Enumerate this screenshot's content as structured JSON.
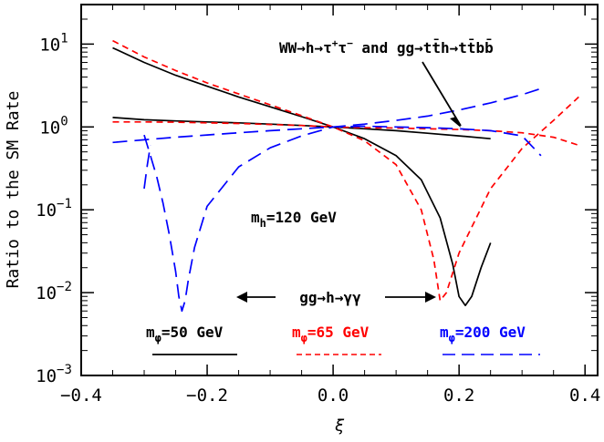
{
  "chart_data": {
    "type": "line",
    "xlabel": "ξ",
    "ylabel": "Ratio to the SM Rate",
    "xlim": [
      -0.4,
      0.42
    ],
    "ylim": [
      0.001,
      30
    ],
    "yscale": "log",
    "x_tick_labels": [
      "−0.4",
      "−0.2",
      "0.0",
      "0.2",
      "0.4"
    ],
    "x_ticks": [
      -0.4,
      -0.2,
      0.0,
      0.2,
      0.4
    ],
    "y_ticks": [
      0.001,
      0.01,
      0.1,
      1,
      10
    ],
    "y_tick_labels": [
      {
        "base": "10",
        "exp": "−3"
      },
      {
        "base": "10",
        "exp": "−2"
      },
      {
        "base": "10",
        "exp": "−1"
      },
      {
        "base": "10",
        "exp": "0"
      },
      {
        "base": "10",
        "exp": "1"
      }
    ],
    "annotations": {
      "ww_line1": "WW→h→τ",
      "ww_sup_plus": "+",
      "ww_tau2": "τ",
      "ww_sup_minus": "−",
      "ww_line2": " and gg→tt̄h→tt̄bb̄",
      "mh_base": "m",
      "mh_sub": "h",
      "mh_value": "=120 GeV",
      "gg_gamma": "gg→h→γγ"
    },
    "legend": [
      {
        "base": "m",
        "sub": "φ",
        "value": "=50 GeV",
        "color": "#000000",
        "dash": "solid"
      },
      {
        "base": "m",
        "sub": "φ",
        "value": "=65 GeV",
        "color": "#ff0000",
        "dash": "dashed"
      },
      {
        "base": "m",
        "sub": "φ",
        "value": "=200 GeV",
        "color": "#0000ff",
        "dash": "long-dashed"
      }
    ],
    "series": [
      {
        "group": "m_phi=50 GeV",
        "process": "WW→h→ττ and gg→tth→ttbb",
        "color": "#000000",
        "dash": "solid",
        "x": [
          -0.35,
          -0.3,
          -0.25,
          -0.2,
          -0.15,
          -0.1,
          -0.05,
          0.0,
          0.05,
          0.1,
          0.15,
          0.2,
          0.25
        ],
        "y": [
          1.3,
          1.22,
          1.18,
          1.15,
          1.12,
          1.08,
          1.04,
          1.0,
          0.95,
          0.9,
          0.84,
          0.78,
          0.72
        ]
      },
      {
        "group": "m_phi=50 GeV",
        "process": "gg→h→γγ",
        "color": "#000000",
        "dash": "solid",
        "x": [
          -0.35,
          -0.3,
          -0.25,
          -0.2,
          -0.15,
          -0.1,
          -0.05,
          0.0,
          0.05,
          0.1,
          0.14,
          0.17,
          0.19,
          0.2,
          0.21,
          0.22,
          0.235,
          0.25
        ],
        "y": [
          9.0,
          6.0,
          4.2,
          3.1,
          2.3,
          1.75,
          1.33,
          1.0,
          0.72,
          0.45,
          0.23,
          0.08,
          0.022,
          0.009,
          0.007,
          0.009,
          0.02,
          0.04
        ]
      },
      {
        "group": "m_phi=65 GeV",
        "process": "WW→h→ττ and gg→tth→ttbb",
        "color": "#ff0000",
        "dash": "dashed",
        "x": [
          -0.35,
          -0.3,
          -0.25,
          -0.2,
          -0.15,
          -0.1,
          -0.05,
          0.0,
          0.05,
          0.1,
          0.15,
          0.2,
          0.25,
          0.3,
          0.35,
          0.39
        ],
        "y": [
          1.15,
          1.15,
          1.14,
          1.12,
          1.1,
          1.07,
          1.04,
          1.0,
          0.98,
          0.97,
          0.95,
          0.93,
          0.9,
          0.85,
          0.75,
          0.6
        ]
      },
      {
        "group": "m_phi=65 GeV",
        "process": "gg→h→γγ",
        "color": "#ff0000",
        "dash": "dashed",
        "x": [
          -0.35,
          -0.3,
          -0.25,
          -0.2,
          -0.15,
          -0.1,
          -0.05,
          0.0,
          0.05,
          0.1,
          0.14,
          0.16,
          0.17,
          0.18,
          0.2,
          0.25,
          0.3,
          0.35,
          0.39
        ],
        "y": [
          11.0,
          7.0,
          4.8,
          3.4,
          2.5,
          1.85,
          1.37,
          1.0,
          0.68,
          0.35,
          0.1,
          0.025,
          0.008,
          0.01,
          0.03,
          0.18,
          0.55,
          1.2,
          2.3
        ]
      },
      {
        "group": "m_phi=200 GeV",
        "process": "WW→h→ττ and gg→tth→ttbb",
        "color": "#0000ff",
        "dash": "long-dashed",
        "x": [
          -0.35,
          -0.3,
          -0.25,
          -0.2,
          -0.15,
          -0.1,
          -0.05,
          0.0,
          0.05,
          0.1,
          0.15,
          0.2,
          0.25,
          0.3,
          0.33
        ],
        "y": [
          0.65,
          0.7,
          0.75,
          0.8,
          0.85,
          0.9,
          0.95,
          1.0,
          1.08,
          1.2,
          1.35,
          1.6,
          1.95,
          2.45,
          2.9
        ]
      },
      {
        "group": "m_phi=200 GeV",
        "process": "gg→h→γγ",
        "color": "#0000ff",
        "dash": "long-dashed",
        "x": [
          -0.3,
          -0.29,
          -0.28,
          -0.27,
          -0.26,
          -0.25,
          -0.245,
          -0.24,
          -0.235,
          -0.23,
          -0.22,
          -0.2,
          -0.15,
          -0.1,
          -0.05,
          0.0,
          0.05,
          0.1,
          0.15,
          0.2,
          0.25,
          0.3,
          0.33
        ],
        "y": [
          0.8,
          0.45,
          0.25,
          0.12,
          0.05,
          0.018,
          0.009,
          0.006,
          0.008,
          0.014,
          0.035,
          0.11,
          0.33,
          0.56,
          0.78,
          1.0,
          1.02,
          1.0,
          0.98,
          0.95,
          0.9,
          0.78,
          0.45
        ]
      },
      {
        "group": "m_phi=200 GeV",
        "process": "lower branch start",
        "color": "#0000ff",
        "dash": "long-dashed",
        "x": [
          -0.3,
          -0.295,
          -0.29
        ],
        "y": [
          0.18,
          0.35,
          0.6
        ]
      }
    ]
  }
}
